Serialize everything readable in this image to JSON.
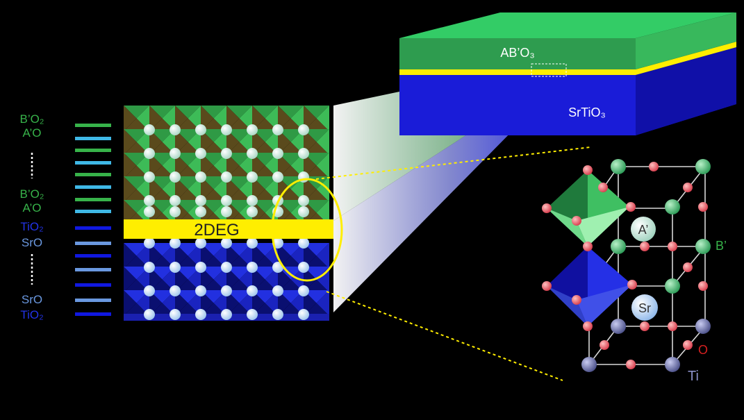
{
  "colors": {
    "background": "#000000",
    "green_layer": "#2e9c4f",
    "green_label": "#37b34a",
    "cyan_label": "#3fb8e6",
    "blue_layer": "#1018e0",
    "blue_label": "#2233e8",
    "sro_label": "#6a98e0",
    "yellow": "#ffee00",
    "oxygen": "#e84a5f",
    "titanium": "#6a6fa8",
    "bprime": "#3dbb6a"
  },
  "slab": {
    "top_label": "AB’O₃",
    "substrate_label": "SrTiO₃"
  },
  "interface_label": "2DEG",
  "layer_labels": [
    {
      "text": "B’O₂",
      "color": "green"
    },
    {
      "text": "A’O",
      "color": "green"
    },
    {
      "text": "B’O₂",
      "color": "green"
    },
    {
      "text": "A’O",
      "color": "green"
    },
    {
      "text": "TiO₂",
      "color": "blue"
    },
    {
      "text": "SrO",
      "color": "sro"
    },
    {
      "text": "SrO",
      "color": "sro"
    },
    {
      "text": "TiO₂",
      "color": "blue"
    }
  ],
  "unit_cell": {
    "a_prime": "A’",
    "b_prime": "B’",
    "sr": "Sr",
    "o": "O",
    "ti": "Ti"
  }
}
